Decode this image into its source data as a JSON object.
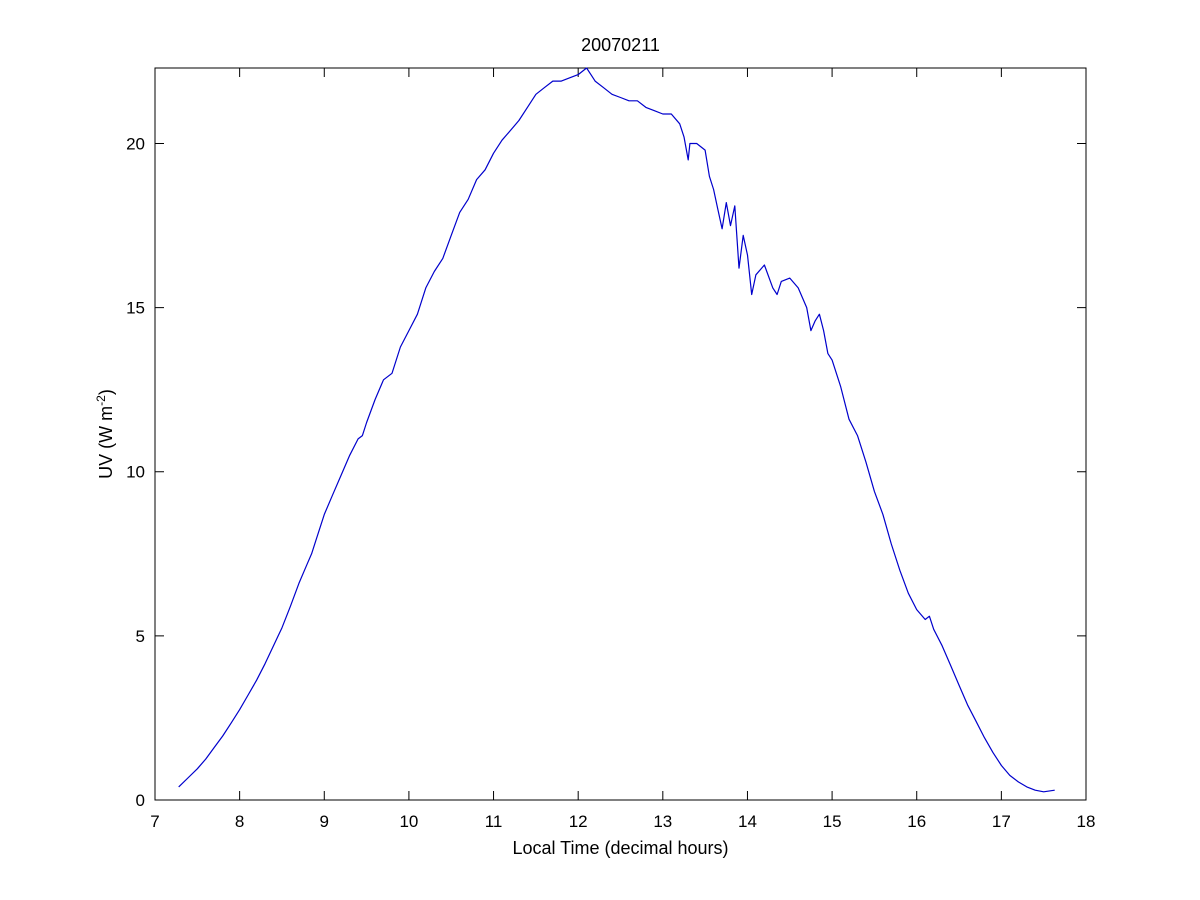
{
  "chart_data": {
    "type": "line",
    "title": "20070211",
    "xlabel": "Local Time (decimal hours)",
    "ylabel": "UV (W m",
    "ylabel_sup": "-2",
    "ylabel_close": ")",
    "xlim": [
      7,
      18
    ],
    "ylim": [
      0,
      22.3
    ],
    "xticks": [
      7,
      8,
      9,
      10,
      11,
      12,
      13,
      14,
      15,
      16,
      17,
      18
    ],
    "yticks": [
      0,
      5,
      10,
      15,
      20
    ],
    "grid": false,
    "line_color": "#0000cc",
    "series": [
      {
        "x": [
          7.28,
          7.4,
          7.5,
          7.6,
          7.7,
          7.8,
          7.9,
          8.0,
          8.1,
          8.2,
          8.3,
          8.4,
          8.5,
          8.6,
          8.7,
          8.8,
          8.85,
          8.9,
          9.0,
          9.1,
          9.2,
          9.3,
          9.4,
          9.45,
          9.5,
          9.6,
          9.7,
          9.8,
          9.9,
          10.0,
          10.1,
          10.2,
          10.3,
          10.4,
          10.5,
          10.6,
          10.7,
          10.8,
          10.9,
          11.0,
          11.1,
          11.2,
          11.3,
          11.4,
          11.5,
          11.6,
          11.7,
          11.8,
          11.9,
          12.0,
          12.1,
          12.15,
          12.2,
          12.3,
          12.4,
          12.5,
          12.6,
          12.7,
          12.8,
          12.9,
          13.0,
          13.1,
          13.2,
          13.25,
          13.3,
          13.32,
          13.4,
          13.5,
          13.55,
          13.6,
          13.65,
          13.7,
          13.75,
          13.8,
          13.85,
          13.9,
          13.95,
          14.0,
          14.05,
          14.1,
          14.2,
          14.3,
          14.35,
          14.4,
          14.5,
          14.6,
          14.7,
          14.75,
          14.8,
          14.85,
          14.9,
          14.95,
          15.0,
          15.1,
          15.2,
          15.3,
          15.4,
          15.5,
          15.6,
          15.7,
          15.8,
          15.9,
          16.0,
          16.1,
          16.15,
          16.2,
          16.3,
          16.4,
          16.5,
          16.6,
          16.7,
          16.8,
          16.9,
          17.0,
          17.1,
          17.2,
          17.3,
          17.4,
          17.5,
          17.63
        ],
        "y": [
          0.4,
          0.7,
          0.95,
          1.25,
          1.6,
          1.95,
          2.35,
          2.75,
          3.2,
          3.65,
          4.15,
          4.7,
          5.25,
          5.9,
          6.6,
          7.2,
          7.5,
          7.9,
          8.7,
          9.3,
          9.9,
          10.5,
          11.0,
          11.1,
          11.5,
          12.2,
          12.8,
          13.0,
          13.8,
          14.3,
          14.8,
          15.6,
          16.1,
          16.5,
          17.2,
          17.9,
          18.3,
          18.9,
          19.2,
          19.7,
          20.1,
          20.4,
          20.7,
          21.1,
          21.5,
          21.7,
          21.9,
          21.9,
          22.0,
          22.1,
          22.3,
          22.1,
          21.9,
          21.7,
          21.5,
          21.4,
          21.3,
          21.3,
          21.1,
          21.0,
          20.9,
          20.9,
          20.6,
          20.2,
          19.5,
          20.0,
          20.0,
          19.8,
          19.0,
          18.6,
          18.0,
          17.4,
          18.2,
          17.5,
          18.1,
          16.2,
          17.2,
          16.6,
          15.4,
          16.0,
          16.3,
          15.6,
          15.4,
          15.8,
          15.9,
          15.6,
          15.0,
          14.3,
          14.6,
          14.8,
          14.3,
          13.6,
          13.4,
          12.6,
          11.6,
          11.1,
          10.3,
          9.4,
          8.7,
          7.8,
          7.0,
          6.3,
          5.8,
          5.5,
          5.6,
          5.2,
          4.7,
          4.1,
          3.5,
          2.9,
          2.4,
          1.9,
          1.45,
          1.05,
          0.75,
          0.55,
          0.4,
          0.3,
          0.25,
          0.3
        ]
      }
    ]
  }
}
